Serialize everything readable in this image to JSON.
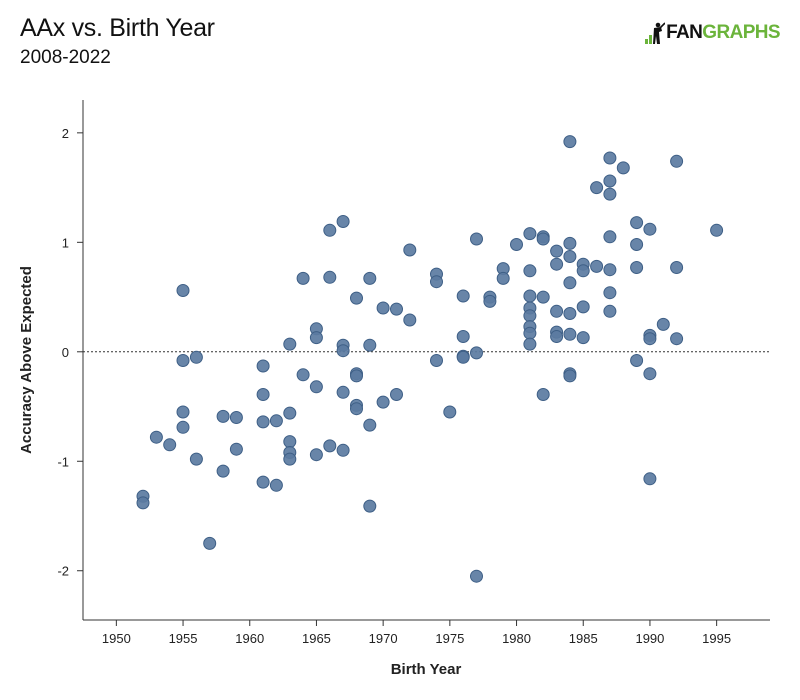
{
  "header": {
    "title": "AAx vs. Birth Year",
    "subtitle": "2008-2022",
    "logo_fan": "FAN",
    "logo_graphs": "GRAPHS"
  },
  "colors": {
    "point_fill": "#5b7ba1",
    "point_stroke": "#3e5f86",
    "logo_green": "#6bb43b"
  },
  "chart_data": {
    "type": "scatter",
    "xlabel": "Birth Year",
    "ylabel": "Accuracy Above Expected",
    "xlim": [
      1947.5,
      1999
    ],
    "ylim": [
      -2.45,
      2.3
    ],
    "xticks": [
      1950,
      1955,
      1960,
      1965,
      1970,
      1975,
      1980,
      1985,
      1990,
      1995
    ],
    "yticks": [
      2,
      1,
      0,
      -1,
      -2
    ],
    "reference_line": 0,
    "grid": false,
    "points": [
      [
        1952,
        -1.32
      ],
      [
        1952,
        -1.38
      ],
      [
        1953,
        -0.78
      ],
      [
        1954,
        -0.85
      ],
      [
        1955,
        0.56
      ],
      [
        1955,
        -0.08
      ],
      [
        1955,
        -0.55
      ],
      [
        1955,
        -0.69
      ],
      [
        1956,
        -0.05
      ],
      [
        1956,
        -0.98
      ],
      [
        1957,
        -1.75
      ],
      [
        1958,
        -0.59
      ],
      [
        1958,
        -1.09
      ],
      [
        1959,
        -0.6
      ],
      [
        1959,
        -0.89
      ],
      [
        1961,
        -0.13
      ],
      [
        1961,
        -0.39
      ],
      [
        1961,
        -0.64
      ],
      [
        1961,
        -1.19
      ],
      [
        1962,
        -0.63
      ],
      [
        1962,
        -1.22
      ],
      [
        1963,
        0.07
      ],
      [
        1963,
        -0.56
      ],
      [
        1963,
        -0.82
      ],
      [
        1963,
        -0.92
      ],
      [
        1963,
        -0.98
      ],
      [
        1964,
        0.67
      ],
      [
        1964,
        -0.21
      ],
      [
        1965,
        0.21
      ],
      [
        1965,
        0.13
      ],
      [
        1965,
        -0.32
      ],
      [
        1965,
        -0.94
      ],
      [
        1966,
        1.11
      ],
      [
        1966,
        0.68
      ],
      [
        1966,
        -0.86
      ],
      [
        1967,
        1.19
      ],
      [
        1967,
        0.06
      ],
      [
        1967,
        0.01
      ],
      [
        1967,
        -0.37
      ],
      [
        1967,
        -0.9
      ],
      [
        1968,
        0.49
      ],
      [
        1968,
        -0.2
      ],
      [
        1968,
        -0.22
      ],
      [
        1968,
        -0.49
      ],
      [
        1968,
        -0.52
      ],
      [
        1969,
        0.67
      ],
      [
        1969,
        0.06
      ],
      [
        1969,
        -0.67
      ],
      [
        1969,
        -1.41
      ],
      [
        1970,
        0.4
      ],
      [
        1970,
        -0.46
      ],
      [
        1971,
        0.39
      ],
      [
        1971,
        -0.39
      ],
      [
        1972,
        0.29
      ],
      [
        1972,
        0.93
      ],
      [
        1974,
        0.71
      ],
      [
        1974,
        0.64
      ],
      [
        1974,
        -0.08
      ],
      [
        1975,
        -0.55
      ],
      [
        1976,
        0.51
      ],
      [
        1976,
        0.14
      ],
      [
        1976,
        -0.04
      ],
      [
        1976,
        -0.05
      ],
      [
        1977,
        1.03
      ],
      [
        1977,
        -0.01
      ],
      [
        1977,
        -2.05
      ],
      [
        1978,
        0.5
      ],
      [
        1978,
        0.46
      ],
      [
        1979,
        0.76
      ],
      [
        1979,
        0.67
      ],
      [
        1980,
        0.98
      ],
      [
        1981,
        1.08
      ],
      [
        1981,
        0.74
      ],
      [
        1981,
        0.51
      ],
      [
        1981,
        0.4
      ],
      [
        1981,
        0.33
      ],
      [
        1981,
        0.23
      ],
      [
        1981,
        0.17
      ],
      [
        1981,
        0.07
      ],
      [
        1982,
        1.05
      ],
      [
        1982,
        1.03
      ],
      [
        1982,
        0.5
      ],
      [
        1982,
        -0.39
      ],
      [
        1983,
        0.92
      ],
      [
        1983,
        0.8
      ],
      [
        1983,
        0.37
      ],
      [
        1983,
        0.18
      ],
      [
        1983,
        0.14
      ],
      [
        1984,
        1.92
      ],
      [
        1984,
        0.99
      ],
      [
        1984,
        0.87
      ],
      [
        1984,
        0.63
      ],
      [
        1984,
        0.35
      ],
      [
        1984,
        0.16
      ],
      [
        1984,
        -0.2
      ],
      [
        1984,
        -0.22
      ],
      [
        1985,
        0.8
      ],
      [
        1985,
        0.74
      ],
      [
        1985,
        0.41
      ],
      [
        1985,
        0.13
      ],
      [
        1986,
        1.5
      ],
      [
        1986,
        0.78
      ],
      [
        1987,
        1.77
      ],
      [
        1987,
        1.56
      ],
      [
        1987,
        1.44
      ],
      [
        1987,
        1.05
      ],
      [
        1987,
        0.75
      ],
      [
        1987,
        0.54
      ],
      [
        1987,
        0.37
      ],
      [
        1988,
        1.68
      ],
      [
        1989,
        1.18
      ],
      [
        1989,
        0.98
      ],
      [
        1989,
        0.77
      ],
      [
        1989,
        -0.08
      ],
      [
        1990,
        1.12
      ],
      [
        1990,
        0.15
      ],
      [
        1990,
        0.12
      ],
      [
        1990,
        -0.2
      ],
      [
        1990,
        -1.16
      ],
      [
        1991,
        0.25
      ],
      [
        1992,
        1.74
      ],
      [
        1992,
        0.77
      ],
      [
        1992,
        0.12
      ],
      [
        1995,
        1.11
      ]
    ]
  }
}
